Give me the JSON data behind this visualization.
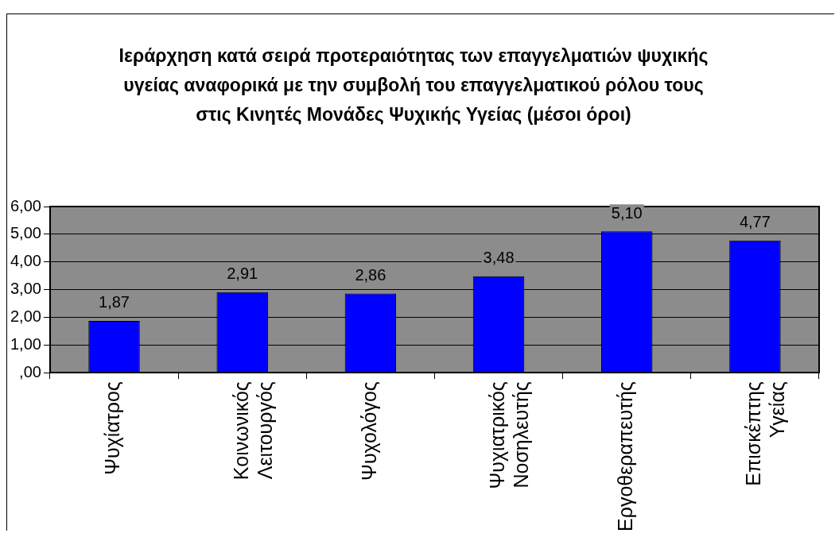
{
  "chart_data": {
    "type": "bar",
    "title": "Ιεράρχηση κατά σειρά προτεραιότητας των επαγγελματιών ψυχικής υγείας  αναφορικά με την συμβολή του επαγγελματικού ρόλου τους στις Κινητές Μονάδες Ψυχικής Υγείας (μέσοι όροι)",
    "categories": [
      "Ψυχίατρος",
      "Κοινωνικός Λειτουργός",
      "Ψυχολόγος",
      "Ψυχιατρικός Νοσηλευτής",
      "Εργοθεραπευτής",
      "Επισκέπτης Υγείας"
    ],
    "values": [
      1.87,
      2.91,
      2.86,
      3.48,
      5.1,
      4.77
    ],
    "value_labels": [
      "1,87",
      "2,91",
      "2,86",
      "3,48",
      "5,10",
      "4,77"
    ],
    "color": "#0000ff",
    "ylim": [
      0,
      6
    ],
    "yticks": [
      {
        "value": 0,
        "label": ",00"
      },
      {
        "value": 1,
        "label": "1,00"
      },
      {
        "value": 2,
        "label": "2,00"
      },
      {
        "value": 3,
        "label": "3,00"
      },
      {
        "value": 4,
        "label": "4,00"
      },
      {
        "value": 5,
        "label": "5,00"
      },
      {
        "value": 6,
        "label": "6,00"
      }
    ],
    "grid": "y",
    "legend": false
  }
}
